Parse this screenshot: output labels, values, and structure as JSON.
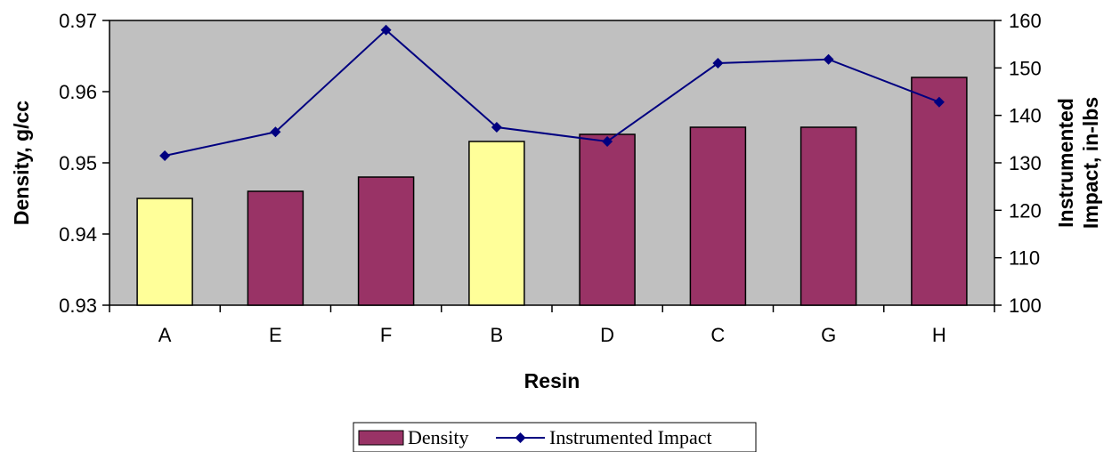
{
  "chart_data": {
    "type": "bar",
    "categories": [
      "A",
      "E",
      "F",
      "B",
      "D",
      "C",
      "G",
      "H"
    ],
    "series": [
      {
        "name": "Density",
        "kind": "bar",
        "axis": "left",
        "values": [
          0.945,
          0.946,
          0.948,
          0.953,
          0.954,
          0.955,
          0.955,
          0.962
        ],
        "point_colors": [
          "#ffff99",
          "#993366",
          "#993366",
          "#ffff99",
          "#993366",
          "#993366",
          "#993366",
          "#993366"
        ]
      },
      {
        "name": "Instrumented Impact",
        "kind": "line",
        "marker": "diamond",
        "axis": "right",
        "values": [
          131.5,
          136.5,
          158,
          137.5,
          134.5,
          151,
          151.8,
          142.8
        ]
      }
    ],
    "xlabel": "Resin",
    "ylabel": "Density, g/cc",
    "y2label": [
      "Instrumented",
      "Impact, in-lbs"
    ],
    "ylim": [
      0.93,
      0.97
    ],
    "y2lim": [
      100,
      160
    ],
    "yticks": [
      "0.93",
      "0.94",
      "0.95",
      "0.96",
      "0.97"
    ],
    "y2ticks": [
      "100",
      "110",
      "120",
      "130",
      "140",
      "150",
      "160"
    ],
    "grid": false,
    "legend": "bottom-center",
    "colors": {
      "plot_bg": "#c0c0c0",
      "bar_default": "#993366",
      "bar_highlight": "#ffff99",
      "line": "#000080"
    }
  }
}
